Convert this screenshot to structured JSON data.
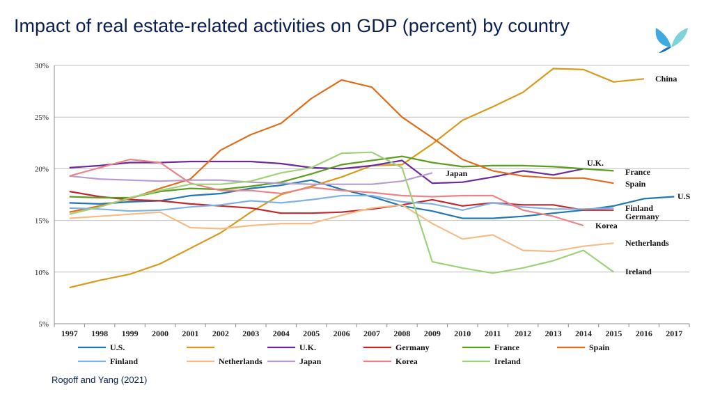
{
  "title": "Impact of real estate-related activities on GDP (percent) by country",
  "source": "Rogoff and Yang (2021)",
  "logo": {
    "icon": "leaf-logo-icon",
    "colors": [
      "#3fa9e0",
      "#7dd3d8",
      "#1b6fb3"
    ]
  },
  "chart_data": {
    "type": "line",
    "x": [
      1997,
      1998,
      1999,
      2000,
      2001,
      2002,
      2003,
      2004,
      2005,
      2006,
      2007,
      2008,
      2009,
      2010,
      2011,
      2012,
      2013,
      2014,
      2015,
      2016,
      2017
    ],
    "ylim": [
      5,
      30
    ],
    "yticks": [
      "5%",
      "10%",
      "15%",
      "20%",
      "25%",
      "30%"
    ],
    "ytick_values": [
      5,
      10,
      15,
      20,
      25,
      30
    ],
    "grid": true,
    "legend": "bottom",
    "series": [
      {
        "name": "U.S.",
        "color": "#1f77b4",
        "label": "U.S",
        "values": [
          16.7,
          16.6,
          16.8,
          16.9,
          17.4,
          17.6,
          18.1,
          18.4,
          18.9,
          18.0,
          17.3,
          16.4,
          15.9,
          15.2,
          15.2,
          15.4,
          15.7,
          16.0,
          16.4,
          17.1,
          17.3
        ]
      },
      {
        "name": "",
        "color": "#d99a1b",
        "label": "China",
        "values": [
          8.5,
          9.2,
          9.8,
          10.8,
          12.3,
          13.8,
          15.8,
          17.5,
          18.3,
          19.2,
          20.3,
          20.4,
          22.4,
          24.7,
          26.0,
          27.4,
          29.7,
          29.6,
          28.4,
          28.7,
          null
        ]
      },
      {
        "name": "U.K.",
        "color": "#6a2a9c",
        "label": "U.K.",
        "values": [
          20.1,
          20.3,
          20.6,
          20.6,
          20.7,
          20.7,
          20.7,
          20.5,
          20.1,
          20.0,
          20.3,
          20.8,
          18.6,
          18.7,
          19.2,
          19.8,
          19.4,
          20.0,
          null,
          null,
          null
        ]
      },
      {
        "name": "Germany",
        "color": "#c0282d",
        "label": "Germany",
        "values": [
          17.8,
          17.3,
          17.0,
          16.9,
          16.6,
          16.4,
          16.2,
          15.7,
          15.7,
          15.8,
          16.1,
          16.5,
          17.0,
          16.4,
          16.7,
          16.5,
          16.5,
          16.0,
          16.0,
          null,
          null
        ]
      },
      {
        "name": "France",
        "color": "#5a9e1e",
        "label": "France",
        "values": [
          17.3,
          17.2,
          17.2,
          17.8,
          18.1,
          18.0,
          18.3,
          18.7,
          19.5,
          20.4,
          20.8,
          21.2,
          20.6,
          20.2,
          20.3,
          20.3,
          20.2,
          20.0,
          19.8,
          null,
          null
        ]
      },
      {
        "name": "Spain",
        "color": "#e06c1a",
        "label": "Spain",
        "values": [
          15.8,
          16.4,
          17.1,
          18.1,
          19.0,
          21.8,
          23.3,
          24.4,
          26.8,
          28.6,
          27.9,
          25.0,
          23.0,
          20.9,
          19.8,
          19.3,
          19.1,
          19.1,
          18.6,
          null,
          null
        ]
      },
      {
        "name": "Finland",
        "color": "#7fb2e2",
        "label": "Finland",
        "values": [
          16.2,
          16.1,
          15.9,
          16.0,
          16.3,
          16.5,
          16.9,
          16.7,
          17.0,
          17.4,
          17.4,
          16.8,
          16.6,
          16.0,
          16.7,
          16.3,
          16.1,
          16.1,
          16.2,
          null,
          null
        ]
      },
      {
        "name": "Netherlands",
        "color": "#f5bc88",
        "label": "Netherlands",
        "values": [
          15.2,
          15.4,
          15.6,
          15.8,
          14.3,
          14.2,
          14.5,
          14.7,
          14.7,
          15.5,
          16.2,
          16.5,
          14.7,
          13.2,
          13.6,
          12.1,
          12.0,
          12.5,
          12.8,
          null,
          null
        ]
      },
      {
        "name": "Japan",
        "color": "#b89ad4",
        "label": "Japan",
        "values": [
          19.3,
          19.0,
          18.9,
          18.8,
          18.9,
          18.9,
          18.7,
          18.6,
          18.5,
          18.5,
          18.5,
          18.8,
          19.6,
          null,
          null,
          null,
          null,
          null,
          null,
          null,
          null
        ]
      },
      {
        "name": "Korea",
        "color": "#ec8486",
        "label": "Korea",
        "values": [
          19.3,
          20.1,
          20.9,
          20.6,
          18.6,
          17.9,
          17.9,
          17.6,
          18.2,
          17.9,
          17.7,
          17.4,
          17.3,
          17.4,
          17.4,
          16.0,
          15.4,
          14.5,
          null,
          null,
          null
        ]
      },
      {
        "name": "Ireland",
        "color": "#9fd17a",
        "label": "Ireland",
        "values": [
          15.6,
          16.3,
          17.2,
          17.9,
          18.5,
          18.5,
          18.8,
          19.6,
          20.1,
          21.5,
          21.6,
          20.1,
          11.0,
          10.4,
          9.9,
          10.4,
          11.1,
          12.1,
          10.0,
          null,
          null
        ]
      }
    ]
  }
}
